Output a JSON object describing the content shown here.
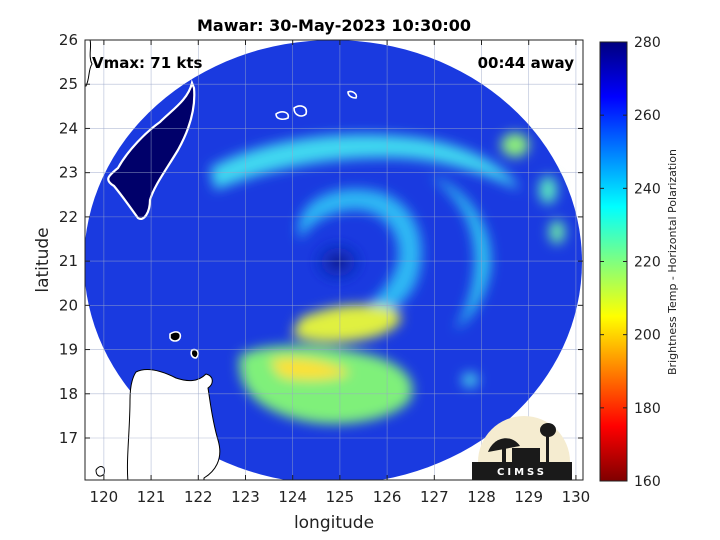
{
  "chart_data": {
    "type": "heatmap",
    "title": "Mawar: 30-May-2023 10:30:00",
    "xlabel": "longitude",
    "ylabel": "latitude",
    "xlim": [
      119.6,
      130.15
    ],
    "ylim": [
      16.05,
      26.0
    ],
    "xticks": [
      120,
      121,
      122,
      123,
      124,
      125,
      126,
      127,
      128,
      129,
      130
    ],
    "yticks": [
      17,
      18,
      19,
      20,
      21,
      22,
      23,
      24,
      25,
      26
    ],
    "grid": true,
    "annotations": {
      "vmax": "Vmax: 71 kts",
      "time_away": "00:44 away"
    },
    "storm_center": {
      "lon": 124.8,
      "lat": 21.0
    },
    "swath": {
      "center_lon": 124.9,
      "center_lat": 21.15,
      "radius_lon": 5.4,
      "radius_lat": 5.1
    },
    "colorbar": {
      "label": "Brightness Temp - Horizontal Polarization",
      "min": 160,
      "max": 280,
      "ticks": [
        160,
        180,
        200,
        220,
        240,
        260,
        280
      ],
      "colormap": "jet",
      "colors": [
        "#7f0000",
        "#ff0000",
        "#ffff00",
        "#00ffff",
        "#0000ff",
        "#00007f"
      ]
    },
    "features": [
      {
        "name": "eye",
        "lon": 124.85,
        "lat": 21.0,
        "tb": 268
      },
      {
        "name": "inner-band-south",
        "lon": 124.9,
        "lat": 19.6,
        "tb": 212
      },
      {
        "name": "outer-band-southwest",
        "lon": 123.8,
        "lat": 18.6,
        "tb": 225
      },
      {
        "name": "northern-band",
        "lon": 125.8,
        "lat": 22.9,
        "tb": 232
      },
      {
        "name": "eastern-cells",
        "lon": 129.0,
        "lat": 22.8,
        "tb": 228
      }
    ]
  },
  "logo": {
    "text": "CIMSS"
  }
}
